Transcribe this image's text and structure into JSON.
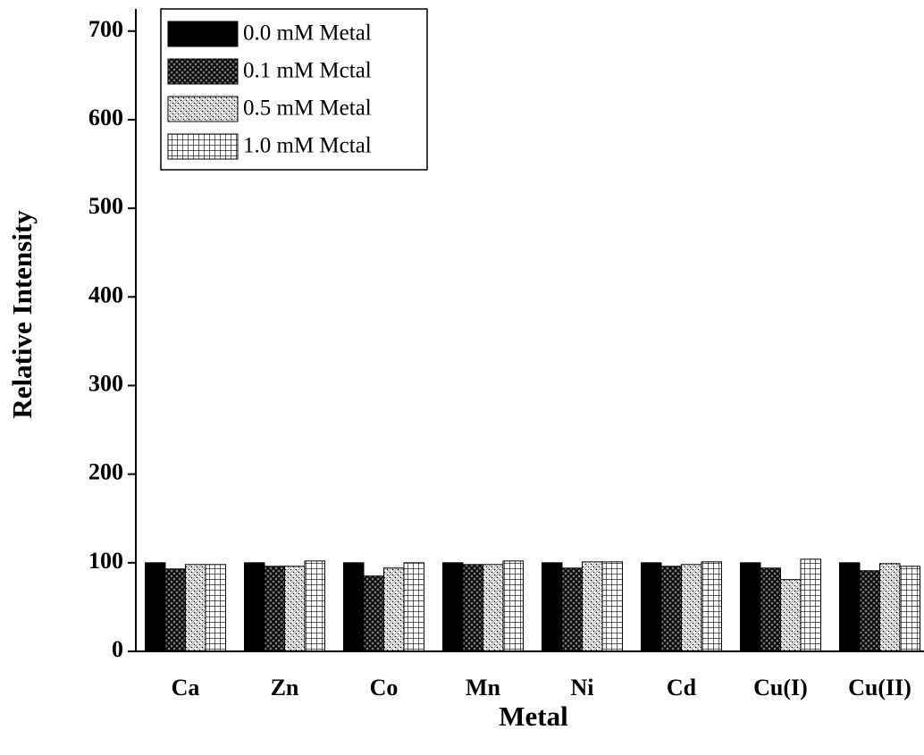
{
  "chart_data": {
    "type": "bar",
    "x_label": "Metal",
    "y_label": "Relative Intensity",
    "categories": [
      "Ca",
      "Zn",
      "Co",
      "Mn",
      "Ni",
      "Cd",
      "Cu(I)",
      "Cu(II)"
    ],
    "series": [
      {
        "name": "0.0 mM Metal",
        "color": "#000000",
        "pattern": "solid",
        "values": [
          100,
          100,
          100,
          100,
          100,
          100,
          100,
          100
        ]
      },
      {
        "name": "0.1 mM Mctal",
        "color": "#000000",
        "pattern": "crosshatch",
        "values": [
          93,
          96,
          85,
          98,
          94,
          96,
          94,
          91
        ]
      },
      {
        "name": "0.5 mM Metal",
        "color": "#000000",
        "pattern": "dotted-cross",
        "values": [
          98,
          96,
          94,
          98,
          101,
          98,
          81,
          99
        ]
      },
      {
        "name": "1.0 mM Mctal",
        "color": "#000000",
        "pattern": "grid",
        "values": [
          98,
          102,
          100,
          102,
          101,
          101,
          104,
          96
        ]
      }
    ],
    "ylim": [
      0,
      725
    ],
    "yticks": [
      0,
      100,
      200,
      300,
      400,
      500,
      600,
      700
    ],
    "legend": "upper left"
  }
}
